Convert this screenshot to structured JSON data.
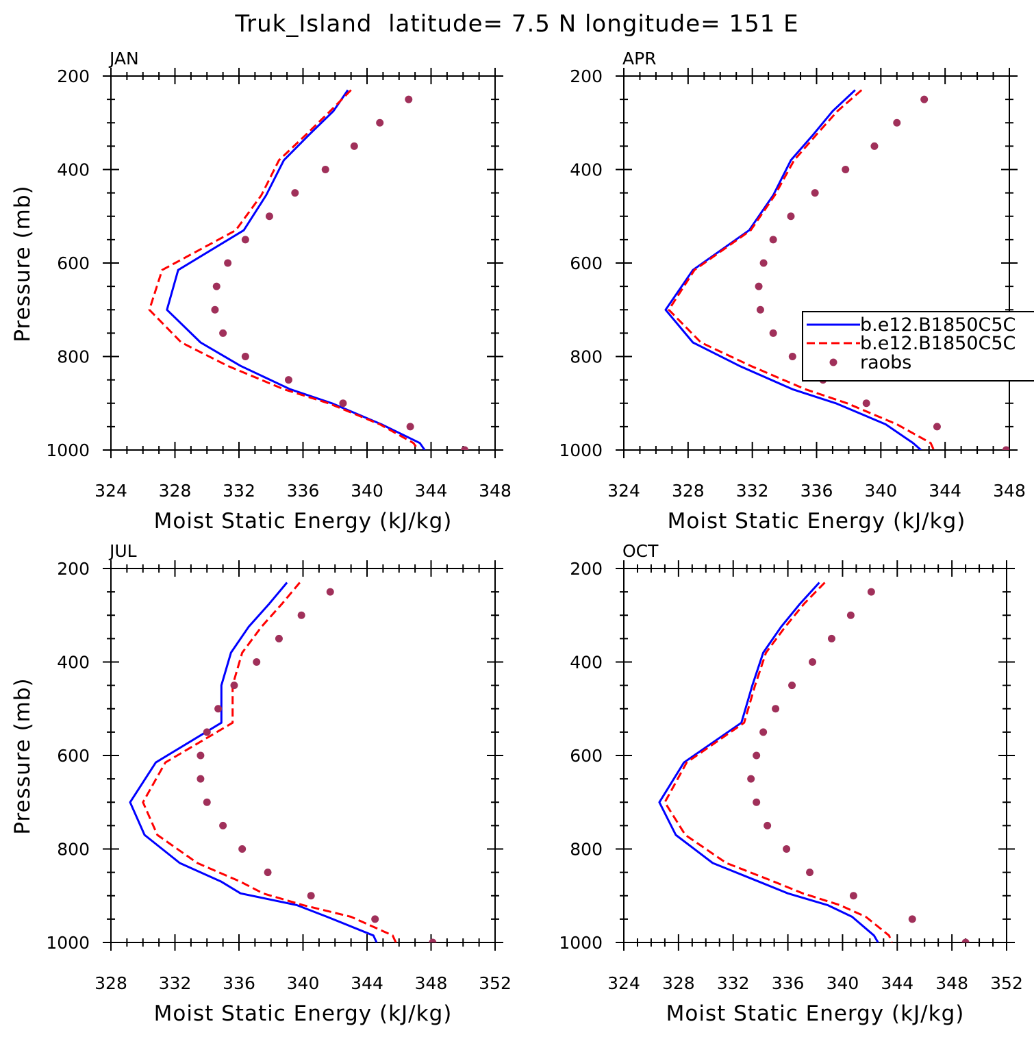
{
  "title": "Truk_Island  latitude= 7.5 N longitude= 151 E",
  "legend": {
    "entries": [
      "b.e12.B1850C5C",
      "b.e12.B1850C5C",
      "raobs"
    ]
  },
  "colors": {
    "series_1": "#0000ff",
    "series_2": "#ff0000",
    "raobs": "#a0305a"
  },
  "chart_data": [
    {
      "type": "line",
      "panel": "JAN",
      "title": "JAN",
      "xlabel": "Moist Static Energy (kJ/kg)",
      "ylabel": "Pressure (mb)",
      "xlim": [
        324,
        348
      ],
      "xticks": [
        324,
        328,
        332,
        336,
        340,
        344,
        348
      ],
      "ylim": [
        1000,
        200
      ],
      "yticks": [
        200,
        400,
        600,
        800,
        1000
      ],
      "grid": false,
      "series": [
        {
          "name": "b.e12.B1850C5C",
          "style": "solid",
          "x": [
            338.8,
            337.9,
            336.4,
            334.8,
            333.7,
            332.3,
            328.2,
            327.5,
            329.6,
            332.1,
            335.2,
            337.8,
            340.9,
            343.3,
            343.6
          ],
          "y": [
            230,
            275,
            325,
            380,
            455,
            530,
            615,
            700,
            770,
            820,
            870,
            900,
            945,
            985,
            1000
          ]
        },
        {
          "name": "b.e12.B1850C5C",
          "style": "dashed",
          "x": [
            339.0,
            337.7,
            336.2,
            334.5,
            333.4,
            331.8,
            327.2,
            326.4,
            328.4,
            331.3,
            334.8,
            337.6,
            340.8,
            342.9,
            343.2
          ],
          "y": [
            230,
            275,
            325,
            380,
            455,
            530,
            615,
            700,
            770,
            820,
            870,
            900,
            945,
            985,
            1000
          ]
        },
        {
          "name": "raobs",
          "style": "points",
          "x": [
            342.6,
            340.8,
            339.2,
            337.4,
            335.5,
            333.9,
            332.4,
            331.3,
            330.6,
            330.5,
            331.0,
            332.4,
            335.1,
            338.5,
            342.7,
            346.1
          ],
          "y": [
            250,
            300,
            350,
            400,
            450,
            500,
            550,
            600,
            650,
            700,
            750,
            800,
            850,
            900,
            950,
            1000
          ]
        }
      ]
    },
    {
      "type": "line",
      "panel": "APR",
      "title": "APR",
      "xlabel": "Moist Static Energy (kJ/kg)",
      "ylabel": "",
      "xlim": [
        324,
        348
      ],
      "xticks": [
        324,
        328,
        332,
        336,
        340,
        344,
        348
      ],
      "ylim": [
        1000,
        200
      ],
      "yticks": [
        200,
        400,
        600,
        800,
        1000
      ],
      "grid": false,
      "legend_position": "right",
      "series": [
        {
          "name": "b.e12.B1850C5C",
          "style": "solid",
          "x": [
            338.4,
            337.0,
            335.8,
            334.4,
            333.3,
            331.8,
            328.3,
            326.6,
            328.3,
            331.2,
            334.5,
            337.2,
            340.3,
            342.0,
            342.5
          ],
          "y": [
            230,
            275,
            325,
            380,
            455,
            530,
            615,
            700,
            770,
            820,
            870,
            900,
            945,
            985,
            1000
          ]
        },
        {
          "name": "b.e12.B1850C5C",
          "style": "dashed",
          "x": [
            338.8,
            337.3,
            336.0,
            334.6,
            333.4,
            331.9,
            328.4,
            326.8,
            328.8,
            331.9,
            335.3,
            337.9,
            341.0,
            343.1,
            343.3
          ],
          "y": [
            230,
            275,
            325,
            380,
            455,
            530,
            615,
            700,
            770,
            820,
            870,
            900,
            945,
            985,
            1000
          ]
        },
        {
          "name": "raobs",
          "style": "points",
          "x": [
            342.7,
            341.0,
            339.6,
            337.8,
            335.9,
            334.4,
            333.3,
            332.7,
            332.4,
            332.5,
            333.3,
            334.5,
            336.4,
            339.1,
            343.5,
            347.8
          ],
          "y": [
            250,
            300,
            350,
            400,
            450,
            500,
            550,
            600,
            650,
            700,
            750,
            800,
            850,
            900,
            950,
            1000
          ]
        }
      ]
    },
    {
      "type": "line",
      "panel": "JUL",
      "title": "JUL",
      "xlabel": "Moist Static Energy (kJ/kg)",
      "ylabel": "Pressure (mb)",
      "xlim": [
        328,
        352
      ],
      "xticks": [
        328,
        332,
        336,
        340,
        344,
        348,
        352
      ],
      "ylim": [
        1000,
        200
      ],
      "yticks": [
        200,
        400,
        600,
        800,
        1000
      ],
      "grid": false,
      "series": [
        {
          "name": "b.e12.B1850C5C",
          "style": "solid",
          "x": [
            339.0,
            337.9,
            336.6,
            335.5,
            334.9,
            334.9,
            330.8,
            329.2,
            330.1,
            332.3,
            334.9,
            336.1,
            339.6,
            341.5,
            344.4,
            344.6
          ],
          "y": [
            230,
            275,
            325,
            380,
            450,
            530,
            615,
            700,
            770,
            830,
            870,
            895,
            920,
            945,
            985,
            1000
          ]
        },
        {
          "name": "b.e12.B1850C5C",
          "style": "dashed",
          "x": [
            339.8,
            338.7,
            337.4,
            336.2,
            335.6,
            335.6,
            331.4,
            330.0,
            330.9,
            333.4,
            336.1,
            337.5,
            340.0,
            343.0,
            345.6,
            345.8
          ],
          "y": [
            230,
            275,
            325,
            380,
            450,
            530,
            615,
            700,
            770,
            830,
            870,
            895,
            920,
            945,
            985,
            1000
          ]
        },
        {
          "name": "raobs",
          "style": "points",
          "x": [
            341.7,
            339.9,
            338.5,
            337.1,
            335.7,
            334.7,
            334.0,
            333.6,
            333.6,
            334.0,
            335.0,
            336.2,
            337.8,
            340.5,
            344.5,
            348.1
          ],
          "y": [
            250,
            300,
            350,
            400,
            450,
            500,
            550,
            600,
            650,
            700,
            750,
            800,
            850,
            900,
            950,
            1000
          ]
        }
      ]
    },
    {
      "type": "line",
      "panel": "OCT",
      "title": "OCT",
      "xlabel": "Moist Static Energy (kJ/kg)",
      "ylabel": "",
      "xlim": [
        324,
        352
      ],
      "xticks": [
        324,
        328,
        332,
        336,
        340,
        344,
        348,
        352
      ],
      "ylim": [
        1000,
        200
      ],
      "yticks": [
        200,
        400,
        600,
        800,
        1000
      ],
      "grid": false,
      "series": [
        {
          "name": "b.e12.B1850C5C",
          "style": "solid",
          "x": [
            338.3,
            336.9,
            335.5,
            334.2,
            333.4,
            332.6,
            328.4,
            326.6,
            327.8,
            330.5,
            333.9,
            336.0,
            338.9,
            340.7,
            342.3,
            342.6
          ],
          "y": [
            230,
            275,
            325,
            380,
            450,
            530,
            615,
            700,
            770,
            830,
            870,
            895,
            920,
            945,
            985,
            1000
          ]
        },
        {
          "name": "b.e12.B1850C5C",
          "style": "dashed",
          "x": [
            338.7,
            337.2,
            335.8,
            334.4,
            333.6,
            332.8,
            328.6,
            327.0,
            328.5,
            331.5,
            335.0,
            337.1,
            339.8,
            341.7,
            343.4,
            343.6
          ],
          "y": [
            230,
            275,
            325,
            380,
            450,
            530,
            615,
            700,
            770,
            830,
            870,
            895,
            920,
            945,
            985,
            1000
          ]
        },
        {
          "name": "raobs",
          "style": "points",
          "x": [
            342.1,
            340.6,
            339.2,
            337.8,
            336.3,
            335.1,
            334.2,
            333.7,
            333.3,
            333.7,
            334.5,
            335.9,
            337.6,
            340.8,
            345.1,
            349.0
          ],
          "y": [
            250,
            300,
            350,
            400,
            450,
            500,
            550,
            600,
            650,
            700,
            750,
            800,
            850,
            900,
            950,
            1000
          ]
        }
      ]
    }
  ]
}
